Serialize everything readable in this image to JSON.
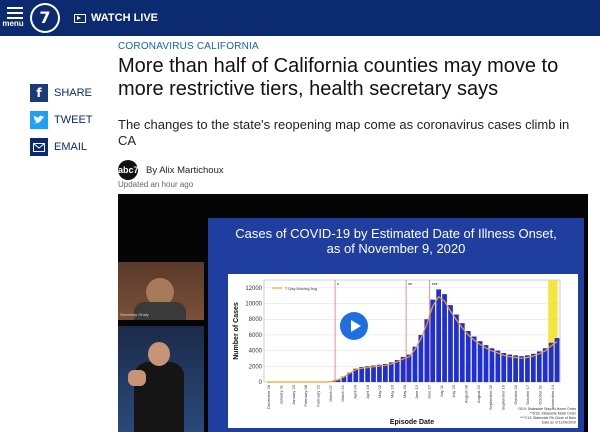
{
  "nav": {
    "menu_label": "menu",
    "logo_text": "7",
    "watch_label": "WATCH LIVE"
  },
  "share": {
    "facebook": "SHARE",
    "twitter": "TWEET",
    "email": "EMAIL"
  },
  "article": {
    "kicker": "CORONAVIRUS CALIFORNIA",
    "headline": "More than half of California counties may move to more restrictive tiers, health secretary says",
    "dek": "The changes to the state's reopening map come as coronavirus cases climb in CA",
    "byline": "By Alix Martichoux",
    "updated": "Updated an hour ago"
  },
  "video": {
    "cam1_label": "Secretary Ghaly",
    "slide_title_line1": "Cases of COVID-19 by Estimated Date of Illness Onset,",
    "slide_title_line2": "as of November 9, 2020"
  },
  "chart_data": {
    "type": "bar",
    "title": "Cases of COVID-19 by Estimated Date of Illness Onset, as of November 9, 2020",
    "xlabel": "Episode Date",
    "ylabel": "Number of Cases",
    "ylim": [
      0,
      13000
    ],
    "yticks": [
      0,
      2000,
      4000,
      6000,
      8000,
      10000,
      12000
    ],
    "legend": "7 Day Moving Avg",
    "legend_placement": "top-left",
    "grid": true,
    "colors": {
      "bars": "#1f2fd6",
      "moving_avg": "#f0a020",
      "highlight": "#f5e020"
    },
    "markers": [
      "*",
      "**",
      "***"
    ],
    "xtick_labels": [
      "December 28",
      "January 11",
      "January 25",
      "February 08",
      "February 22",
      "March 07",
      "March 21",
      "April 04",
      "April 18",
      "May 02",
      "May 16",
      "May 30",
      "June 13",
      "June 27",
      "July 11",
      "July 25",
      "August 08",
      "August 22",
      "September 05",
      "September 19",
      "October 03",
      "October 17",
      "October 31",
      "November 14"
    ],
    "weekly_values": [
      0,
      0,
      0,
      0,
      0,
      0,
      0,
      0,
      0,
      0,
      0,
      100,
      300,
      700,
      1200,
      1700,
      1900,
      2000,
      2100,
      2200,
      2300,
      2500,
      2800,
      3200,
      3500,
      4500,
      6000,
      8000,
      10500,
      11800,
      11200,
      9800,
      8600,
      7500,
      6500,
      5800,
      5200,
      4700,
      4300,
      4000,
      3700,
      3500,
      3400,
      3300,
      3400,
      3600,
      3900,
      4300,
      5000,
      5600
    ],
    "footnotes": [
      "*3/19: Statewide Stay-At-Home Order",
      "**6/18: Statewide Mask Order",
      "***7/13: Statewide Re-Close of Bars",
      "Data as of 11/09/2020"
    ]
  }
}
